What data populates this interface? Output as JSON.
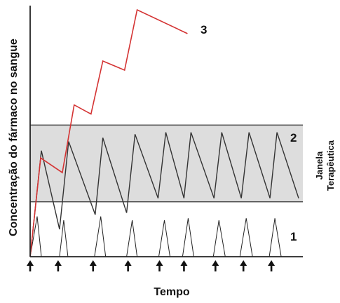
{
  "chart_data": {
    "type": "line",
    "xlabel": "Tempo",
    "ylabel": "Concentração do fármaco no sangue",
    "band": {
      "label_line1": "Janela",
      "label_line2": "Terapêutica",
      "y_low": 3.0,
      "y_high": 7.2,
      "fill": "#dddddd"
    },
    "dose_times": [
      0,
      4,
      9,
      14,
      18.5,
      22,
      26.5,
      30.5,
      34.5
    ],
    "x_range": [
      0,
      39
    ],
    "y_range": [
      0,
      13.5
    ],
    "series": [
      {
        "name": "1",
        "color": "#222222",
        "points": [
          [
            0,
            0
          ],
          [
            1,
            2.2
          ],
          [
            1.6,
            0
          ],
          [
            4.2,
            0
          ],
          [
            4.8,
            2.0
          ],
          [
            5.4,
            0
          ],
          [
            9.2,
            0
          ],
          [
            10.1,
            2.2
          ],
          [
            10.8,
            0
          ],
          [
            13.8,
            0
          ],
          [
            14.6,
            2.0
          ],
          [
            15.3,
            0
          ],
          [
            18.4,
            0
          ],
          [
            19.2,
            2.0
          ],
          [
            20.0,
            0
          ],
          [
            21.8,
            0
          ],
          [
            22.6,
            2.1
          ],
          [
            23.4,
            0
          ],
          [
            26.2,
            0
          ],
          [
            27.0,
            2.0
          ],
          [
            27.9,
            0
          ],
          [
            30.0,
            0
          ],
          [
            30.9,
            2.1
          ],
          [
            31.8,
            0
          ],
          [
            34.2,
            0
          ],
          [
            35.0,
            2.1
          ],
          [
            35.9,
            0
          ]
        ]
      },
      {
        "name": "2",
        "color": "#333333",
        "points": [
          [
            0,
            0
          ],
          [
            1.6,
            5.8
          ],
          [
            4.2,
            1.5
          ],
          [
            5.5,
            6.3
          ],
          [
            9.3,
            2.3
          ],
          [
            10.4,
            6.5
          ],
          [
            13.8,
            2.4
          ],
          [
            15.0,
            6.7
          ],
          [
            18.3,
            3.2
          ],
          [
            19.4,
            6.8
          ],
          [
            22.0,
            3.2
          ],
          [
            23.0,
            6.8
          ],
          [
            26.3,
            3.2
          ],
          [
            27.4,
            6.8
          ],
          [
            30.2,
            3.2
          ],
          [
            31.3,
            6.8
          ],
          [
            34.3,
            3.2
          ],
          [
            35.3,
            6.8
          ],
          [
            38.4,
            3.2
          ]
        ]
      },
      {
        "name": "3",
        "color": "#d43333",
        "points": [
          [
            0,
            0
          ],
          [
            1.5,
            5.4
          ],
          [
            4.6,
            4.6
          ],
          [
            6.3,
            8.3
          ],
          [
            8.7,
            7.8
          ],
          [
            10.4,
            10.7
          ],
          [
            13.5,
            10.2
          ],
          [
            15.3,
            13.5
          ],
          [
            22.5,
            12.2
          ]
        ]
      }
    ]
  }
}
